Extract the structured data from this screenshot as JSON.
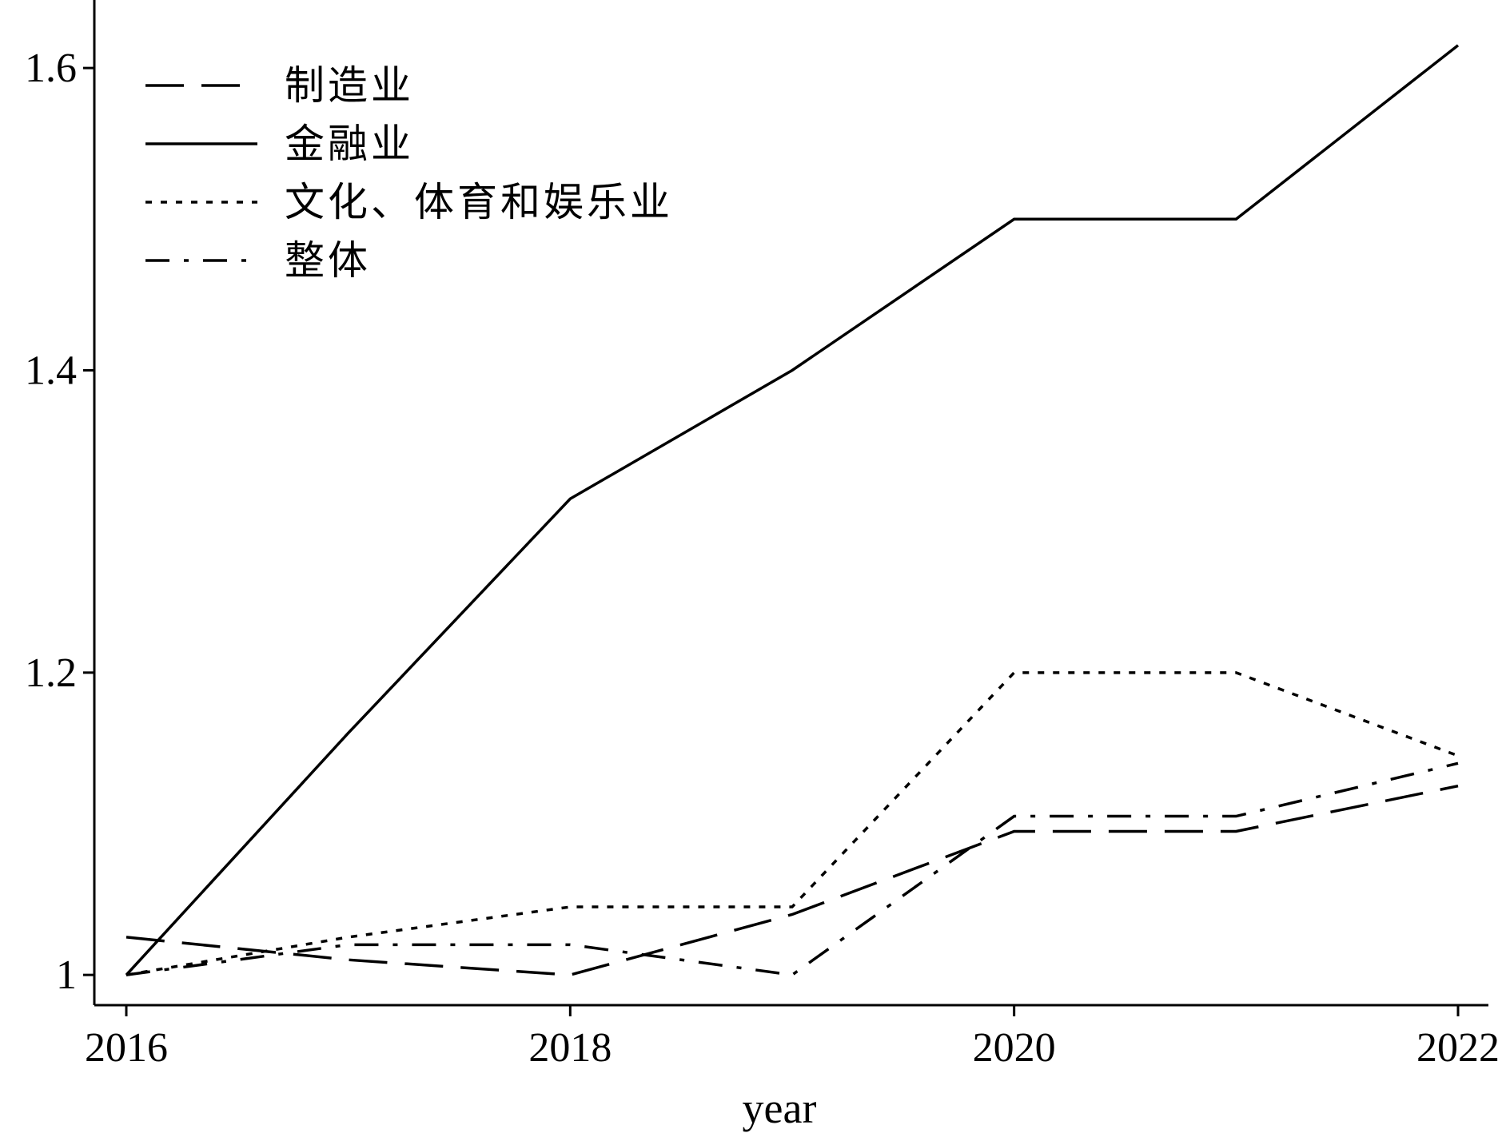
{
  "chart_data": {
    "type": "line",
    "title": "",
    "xlabel": "year",
    "ylabel": "",
    "x": [
      2016,
      2017,
      2018,
      2019,
      2020,
      2021,
      2022
    ],
    "xlim": [
      2016,
      2022
    ],
    "ylim": [
      0.98,
      1.645
    ],
    "xticks": [
      2016,
      2018,
      2020,
      2022
    ],
    "yticks": [
      1,
      1.2,
      1.4,
      1.6
    ],
    "x_tick_labels": [
      "2016",
      "2018",
      "2020",
      "2022"
    ],
    "y_tick_labels": [
      "1",
      "1.2",
      "1.4",
      "1.6"
    ],
    "grid": false,
    "legend_position": "top-left",
    "series": [
      {
        "name": "制造业",
        "style": "dashed",
        "values": [
          1.025,
          1.01,
          1.0,
          1.04,
          1.095,
          1.095,
          1.125
        ]
      },
      {
        "name": "金融业",
        "style": "solid",
        "values": [
          1.0,
          1.16,
          1.315,
          1.4,
          1.5,
          1.5,
          1.615
        ]
      },
      {
        "name": "文化、体育和娱乐业",
        "style": "dotted",
        "values": [
          1.0,
          1.025,
          1.045,
          1.045,
          1.2,
          1.2,
          1.145
        ]
      },
      {
        "name": "整体",
        "style": "dashdot",
        "values": [
          1.0,
          1.02,
          1.02,
          1.0,
          1.105,
          1.105,
          1.14
        ]
      }
    ]
  }
}
